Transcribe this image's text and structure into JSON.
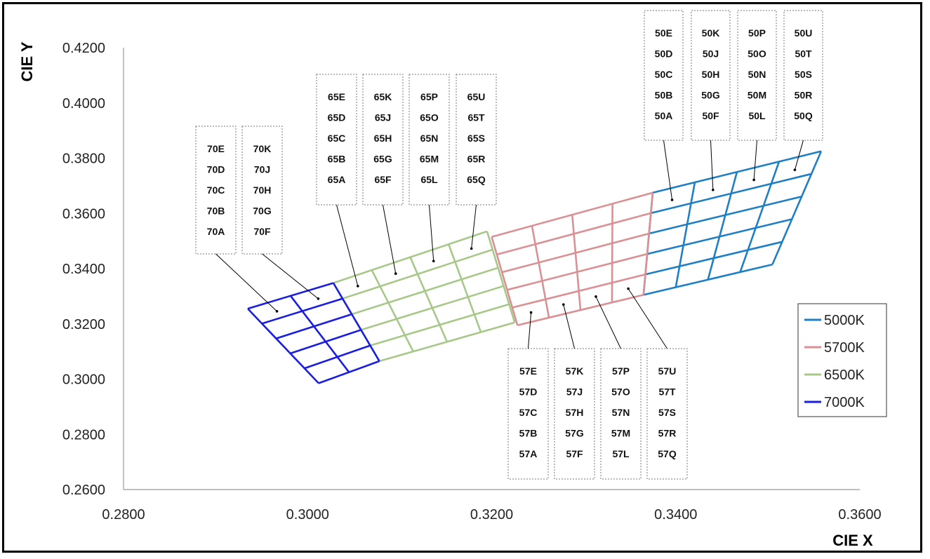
{
  "chart_data": {
    "type": "line",
    "xlabel": "CIE X",
    "ylabel": "CIE Y",
    "xlim": [
      0.28,
      0.36
    ],
    "ylim": [
      0.26,
      0.42
    ],
    "x_ticks": [
      "0.2800",
      "0.3000",
      "0.3200",
      "0.3400",
      "0.3600"
    ],
    "y_ticks": [
      "0.2600",
      "0.2800",
      "0.3000",
      "0.3200",
      "0.3400",
      "0.3600",
      "0.3800",
      "0.4000",
      "0.4200"
    ],
    "legend_position": "right",
    "series": [
      {
        "name": "5000K",
        "color": "#1f7fc4",
        "grid": {
          "top_left": [
            0.3375,
            0.3675
          ],
          "top_right": [
            0.3558,
            0.3825
          ],
          "bottom_left": [
            0.3365,
            0.3305
          ],
          "bottom_right": [
            0.3505,
            0.3415
          ]
        },
        "bin_columns": [
          [
            "50E",
            "50D",
            "50C",
            "50B",
            "50A"
          ],
          [
            "50K",
            "50J",
            "50H",
            "50G",
            "50F"
          ],
          [
            "50P",
            "50O",
            "50N",
            "50M",
            "50L"
          ],
          [
            "50U",
            "50T",
            "50S",
            "50R",
            "50Q"
          ]
        ]
      },
      {
        "name": "5700K",
        "color": "#d99194",
        "grid": {
          "top_left": [
            0.32,
            0.3515
          ],
          "top_right": [
            0.3375,
            0.3675
          ],
          "bottom_left": [
            0.3228,
            0.3195
          ],
          "bottom_right": [
            0.3365,
            0.3305
          ]
        },
        "bin_columns": [
          [
            "57E",
            "57D",
            "57C",
            "57B",
            "57A"
          ],
          [
            "57K",
            "57J",
            "57H",
            "57G",
            "57F"
          ],
          [
            "57P",
            "57O",
            "57N",
            "57M",
            "57L"
          ],
          [
            "57U",
            "57T",
            "57S",
            "57R",
            "57Q"
          ]
        ]
      },
      {
        "name": "6500K",
        "color": "#a8c88a",
        "grid": {
          "top_left": [
            0.3028,
            0.3348
          ],
          "top_right": [
            0.3195,
            0.3535
          ],
          "bottom_left": [
            0.3078,
            0.3065
          ],
          "bottom_right": [
            0.3225,
            0.3205
          ]
        },
        "bin_columns": [
          [
            "65E",
            "65D",
            "65C",
            "65B",
            "65A"
          ],
          [
            "65K",
            "65J",
            "65H",
            "65G",
            "65F"
          ],
          [
            "65P",
            "65O",
            "65N",
            "65M",
            "65L"
          ],
          [
            "65U",
            "65T",
            "65S",
            "65R",
            "65Q"
          ]
        ]
      },
      {
        "name": "7000K",
        "color": "#1a1ee0",
        "grid": {
          "top_left": [
            0.2935,
            0.3255
          ],
          "top_right": [
            0.3028,
            0.3348
          ],
          "bottom_left": [
            0.3012,
            0.2985
          ],
          "bottom_right": [
            0.3078,
            0.3065
          ]
        },
        "bin_columns": [
          [
            "70E",
            "70D",
            "70C",
            "70B",
            "70A"
          ],
          [
            "70K",
            "70J",
            "70H",
            "70G",
            "70F"
          ]
        ]
      }
    ]
  }
}
